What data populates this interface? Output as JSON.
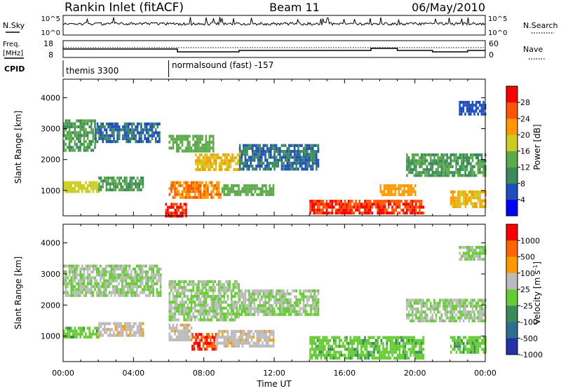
{
  "header": {
    "station": "Rankin Inlet (fitACF)",
    "beam": "Beam 11",
    "date": "06/May/2010"
  },
  "panels": {
    "nsky": {
      "left_label": "N.Sky",
      "left_ticks": [
        "10^5",
        "10^0"
      ],
      "right_ticks": [
        "10^5",
        "10^0"
      ],
      "right_label": "N.Search",
      "right_legend_style": "dotted"
    },
    "freq": {
      "left_label_1": "Freq.",
      "left_label_2": "[MHz]",
      "left_ticks": [
        "18",
        "8"
      ],
      "right_ticks": [
        "60",
        "0"
      ],
      "right_label": "Nave",
      "right_legend_style": "dotted"
    },
    "cpid": {
      "label": "CPID",
      "modes": [
        {
          "name": "themis 3300",
          "start_hour": 0
        },
        {
          "name": "normalsound (fast) -157",
          "start_hour": 6
        }
      ]
    }
  },
  "chart_data": [
    {
      "type": "heatmap",
      "name": "power",
      "ylabel": "Slant Range [km]",
      "yticks": [
        "1000",
        "2000",
        "3000",
        "4000"
      ],
      "ylim": [
        180,
        4600
      ],
      "xlim": [
        0,
        24
      ],
      "colorbar": {
        "label": "Power [dB]",
        "ticks": [
          "4",
          "8",
          "12",
          "16",
          "20",
          "24",
          "28"
        ],
        "range": [
          0,
          32
        ],
        "colors": [
          "#0000ff",
          "#1f4fbf",
          "#3a8a5a",
          "#5caa4a",
          "#cccc20",
          "#ff9900",
          "#ff5500",
          "#ff0000"
        ]
      },
      "regions": [
        {
          "x": [
            0.0,
            1.8
          ],
          "y": [
            2300,
            3300
          ],
          "level": 12
        },
        {
          "x": [
            1.8,
            5.5
          ],
          "y": [
            2600,
            3200
          ],
          "level": 8
        },
        {
          "x": [
            0.0,
            2.0
          ],
          "y": [
            950,
            1300
          ],
          "level": 18
        },
        {
          "x": [
            2.0,
            4.5
          ],
          "y": [
            1050,
            1450
          ],
          "level": 12
        },
        {
          "x": [
            6.0,
            8.5
          ],
          "y": [
            2300,
            2800
          ],
          "level": 14
        },
        {
          "x": [
            7.5,
            10.0
          ],
          "y": [
            1700,
            2200
          ],
          "level": 20
        },
        {
          "x": [
            6.0,
            9.0
          ],
          "y": [
            750,
            1300
          ],
          "level": 24
        },
        {
          "x": [
            9.0,
            12.0
          ],
          "y": [
            850,
            1200
          ],
          "level": 14
        },
        {
          "x": [
            10.0,
            14.5
          ],
          "y": [
            1700,
            2500
          ],
          "level": 8
        },
        {
          "x": [
            5.8,
            7.0
          ],
          "y": [
            200,
            600
          ],
          "level": 28
        },
        {
          "x": [
            14.0,
            20.5
          ],
          "y": [
            250,
            700
          ],
          "level": 28
        },
        {
          "x": [
            18.0,
            20.0
          ],
          "y": [
            900,
            1200
          ],
          "level": 22
        },
        {
          "x": [
            19.5,
            24.0
          ],
          "y": [
            1500,
            2200
          ],
          "level": 12
        },
        {
          "x": [
            22.0,
            24.0
          ],
          "y": [
            500,
            1000
          ],
          "level": 20
        },
        {
          "x": [
            22.5,
            24.0
          ],
          "y": [
            3500,
            3900
          ],
          "level": 6
        }
      ]
    },
    {
      "type": "heatmap",
      "name": "velocity",
      "ylabel": "Slant Range [km]",
      "yticks": [
        "1000",
        "2000",
        "3000",
        "4000"
      ],
      "ylim": [
        180,
        4600
      ],
      "xlim": [
        0,
        24
      ],
      "xlabel": "Time UT",
      "xticks": [
        "00:00",
        "04:00",
        "08:00",
        "12:00",
        "16:00",
        "20:00",
        "00:00"
      ],
      "colorbar": {
        "label": "Velocity [m s^-1]",
        "ticks": [
          "1000",
          "500",
          "100",
          "25",
          "-25",
          "-100",
          "-500",
          "-1000"
        ],
        "range": [
          -1200,
          1200
        ],
        "colors": [
          "#2233aa",
          "#2e6e8e",
          "#3a8a5a",
          "#66cc33",
          "#bbbbbb",
          "#ff9900",
          "#ff6600",
          "#ff0000"
        ]
      },
      "regions": [
        {
          "x": [
            0.0,
            5.5
          ],
          "y": [
            2300,
            3300
          ],
          "level": 0
        },
        {
          "x": [
            0.0,
            2.0
          ],
          "y": [
            950,
            1300
          ],
          "level": -200
        },
        {
          "x": [
            2.0,
            4.5
          ],
          "y": [
            1050,
            1450
          ],
          "level": 200
        },
        {
          "x": [
            6.0,
            10.0
          ],
          "y": [
            1500,
            2800
          ],
          "level": 0
        },
        {
          "x": [
            7.3,
            8.7
          ],
          "y": [
            600,
            1100
          ],
          "level": 900
        },
        {
          "x": [
            6.0,
            7.3
          ],
          "y": [
            900,
            1400
          ],
          "level": 200
        },
        {
          "x": [
            8.7,
            12.0
          ],
          "y": [
            700,
            1200
          ],
          "level": 200
        },
        {
          "x": [
            10.0,
            14.5
          ],
          "y": [
            1700,
            2500
          ],
          "level": 0
        },
        {
          "x": [
            14.0,
            20.5
          ],
          "y": [
            250,
            1000
          ],
          "level": -200
        },
        {
          "x": [
            19.5,
            24.0
          ],
          "y": [
            1500,
            2200
          ],
          "level": 0
        },
        {
          "x": [
            22.0,
            24.0
          ],
          "y": [
            500,
            1000
          ],
          "level": -200
        },
        {
          "x": [
            22.5,
            24.0
          ],
          "y": [
            3500,
            3900
          ],
          "level": 0
        }
      ]
    }
  ]
}
